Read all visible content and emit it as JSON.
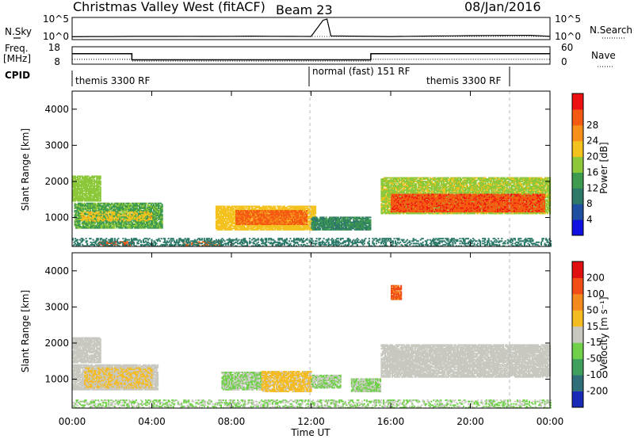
{
  "header": {
    "title": "Christmas Valley West (fitACF)",
    "beam": "Beam 23",
    "date": "08/Jan/2016"
  },
  "nsky_panel": {
    "label": "N.Sky",
    "ytick_top": "10^5",
    "ytick_bottom": "10^0",
    "right_label": "N.Search",
    "right_tick_top": "10^5",
    "right_tick_bottom": "10^0"
  },
  "freq_panel": {
    "label_line1": "Freq.",
    "label_line2": "[MHz]",
    "ytick_top": "18",
    "ytick_bottom": "8",
    "right_label": "Nave",
    "right_tick_top": "60",
    "right_tick_bottom": "0"
  },
  "cpid_panel": {
    "label": "CPID",
    "modes": [
      "themis 3300 RF",
      "normal (fast) 151 RF",
      "themis 3300 RF"
    ]
  },
  "time_axis": {
    "label": "Time UT",
    "ticks": [
      "00:00",
      "04:00",
      "08:00",
      "12:00",
      "16:00",
      "20:00",
      "00:00"
    ]
  },
  "range_axis": {
    "label": "Slant Range [km]",
    "ticks": [
      "1000",
      "2000",
      "3000",
      "4000"
    ]
  },
  "power_scale": {
    "label": "Power [dB]",
    "ticks": [
      "4",
      "8",
      "12",
      "16",
      "20",
      "24",
      "28"
    ],
    "colors": [
      "#1010e0",
      "#1f4fa0",
      "#2e7a6a",
      "#3e9a4e",
      "#8cc83a",
      "#f4c21e",
      "#f7901a",
      "#f45a12",
      "#ee1111"
    ]
  },
  "velocity_scale": {
    "label": "Velocity [m s⁻¹]",
    "ticks": [
      "200",
      "100",
      "50",
      "15",
      "-15",
      "-50",
      "-100",
      "-200"
    ],
    "colors": [
      "#1a2ab8",
      "#2f6f7a",
      "#3fa05e",
      "#70d04a",
      "#c8c8c0",
      "#f4bb22",
      "#f48a1e",
      "#f24d16",
      "#e01010"
    ]
  },
  "chart_data": [
    {
      "type": "line",
      "panel": "N.Sky / N.Search",
      "x_unit": "hours UT",
      "xlim": [
        0,
        24
      ],
      "series": [
        {
          "x": [
            0,
            1,
            2,
            3,
            4,
            5,
            6,
            7,
            8,
            9,
            10,
            11,
            12,
            12.6,
            12.8,
            13,
            14,
            15,
            16,
            17,
            18,
            19,
            20,
            21,
            22,
            23,
            24
          ],
          "values": [
            0.5,
            0.55,
            0.55,
            0.6,
            0.6,
            0.6,
            0.62,
            0.6,
            0.62,
            0.65,
            0.62,
            0.6,
            0.58,
            4.5,
            4.8,
            0.7,
            0.65,
            0.6,
            0.55,
            0.62,
            0.68,
            0.72,
            0.76,
            0.8,
            0.82,
            0.85,
            0.6
          ]
        }
      ]
    },
    {
      "type": "line",
      "panel": "Frequency / Nave",
      "x_unit": "hours UT",
      "freq_mhz": {
        "x": [
          0,
          3,
          3,
          15,
          15,
          24
        ],
        "values": [
          14.0,
          14.0,
          10.5,
          10.5,
          14.0,
          14.0
        ]
      },
      "nave": {
        "x": [
          0,
          3,
          3,
          15,
          15,
          24
        ],
        "values": [
          14,
          14,
          8,
          8,
          14,
          14
        ]
      }
    },
    {
      "type": "heatmap",
      "panel": "Power",
      "x_unit": "hours UT",
      "y_unit": "km",
      "xlim": [
        0,
        24
      ],
      "ylim": [
        200,
        4500
      ],
      "cbar_range": [
        0,
        30
      ],
      "regions": [
        {
          "t": [
            0.0,
            1.4
          ],
          "r": [
            1450,
            2150
          ],
          "v": 15
        },
        {
          "t": [
            0.1,
            4.5
          ],
          "r": [
            700,
            1400
          ],
          "v": 13
        },
        {
          "t": [
            0.4,
            4.0
          ],
          "r": [
            900,
            1150
          ],
          "v": 19
        },
        {
          "t": [
            1.3,
            3.0
          ],
          "r": [
            210,
            330
          ],
          "v": 26
        },
        {
          "t": [
            5.5,
            7.5
          ],
          "r": [
            210,
            330
          ],
          "v": 24
        },
        {
          "t": [
            7.2,
            12.2
          ],
          "r": [
            650,
            1300
          ],
          "v": 18
        },
        {
          "t": [
            8.2,
            11.8
          ],
          "r": [
            800,
            1200
          ],
          "v": 24
        },
        {
          "t": [
            12.0,
            15.0
          ],
          "r": [
            650,
            1000
          ],
          "v": 10
        },
        {
          "t": [
            15.5,
            24.0
          ],
          "r": [
            1100,
            2100
          ],
          "v": 16
        },
        {
          "t": [
            16.0,
            23.7
          ],
          "r": [
            1150,
            1650
          ],
          "v": 26
        },
        {
          "t": [
            0.0,
            24.0
          ],
          "r": [
            200,
            420
          ],
          "v": 8
        }
      ]
    },
    {
      "type": "heatmap",
      "panel": "Velocity",
      "x_unit": "hours UT",
      "y_unit": "km",
      "xlim": [
        0,
        24
      ],
      "ylim": [
        200,
        4500
      ],
      "cbar_range": [
        -250,
        250
      ],
      "regions": [
        {
          "t": [
            0.0,
            1.4
          ],
          "r": [
            1450,
            2150
          ],
          "v": 0
        },
        {
          "t": [
            0.0,
            4.3
          ],
          "r": [
            700,
            1400
          ],
          "v": 0
        },
        {
          "t": [
            0.6,
            4.0
          ],
          "r": [
            750,
            1300
          ],
          "v": 30
        },
        {
          "t": [
            7.5,
            9.5
          ],
          "r": [
            700,
            1200
          ],
          "v": -30
        },
        {
          "t": [
            9.5,
            12.0
          ],
          "r": [
            650,
            1200
          ],
          "v": 40
        },
        {
          "t": [
            12.0,
            13.5
          ],
          "r": [
            750,
            1100
          ],
          "v": -30
        },
        {
          "t": [
            14.0,
            15.5
          ],
          "r": [
            650,
            1000
          ],
          "v": -30
        },
        {
          "t": [
            15.5,
            24.0
          ],
          "r": [
            1050,
            1950
          ],
          "v": 0
        },
        {
          "t": [
            16.0,
            16.5
          ],
          "r": [
            3200,
            3600
          ],
          "v": 150
        },
        {
          "t": [
            0.0,
            24.0
          ],
          "r": [
            200,
            420
          ],
          "v": -30
        }
      ]
    }
  ]
}
